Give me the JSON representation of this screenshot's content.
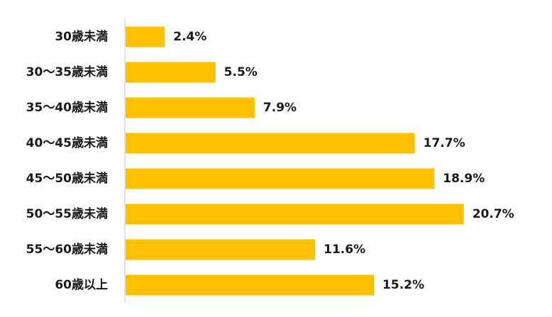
{
  "chart_data": {
    "type": "bar",
    "orientation": "horizontal",
    "categories": [
      "30歳未満",
      "30～35歳未満",
      "35～40歳未満",
      "40～45歳未満",
      "45～50歳未満",
      "50～55歳未満",
      "55～60歳未満",
      "60歳以上"
    ],
    "values": [
      2.4,
      5.5,
      7.9,
      17.7,
      18.9,
      20.7,
      11.6,
      15.2
    ],
    "value_labels": [
      "2.4%",
      "5.5%",
      "7.9%",
      "17.7%",
      "18.9%",
      "20.7%",
      "11.6%",
      "15.2%"
    ],
    "xlim": [
      0,
      25
    ],
    "grid": false,
    "legend": "none",
    "bar_color": "#FFC000",
    "axis_color": "#d9d9d9"
  }
}
